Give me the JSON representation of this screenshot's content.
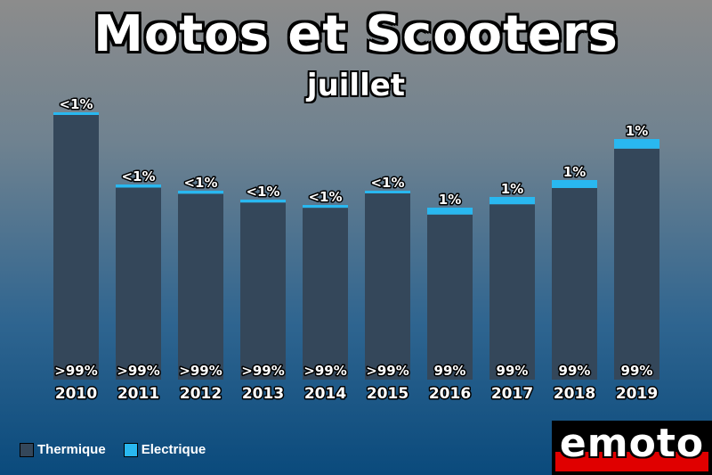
{
  "title": "Motos et Scooters",
  "subtitle": "juillet",
  "legend": {
    "items": [
      {
        "label": "Thermique",
        "color": "#34475a"
      },
      {
        "label": "Electrique",
        "color": "#29b8f0"
      }
    ]
  },
  "logo": {
    "text": "emoto"
  },
  "chart_data": {
    "type": "bar",
    "stacked": true,
    "categories": [
      "2010",
      "2011",
      "2012",
      "2013",
      "2014",
      "2015",
      "2016",
      "2017",
      "2018",
      "2019"
    ],
    "totals": [
      300,
      219,
      212,
      202,
      196,
      212,
      193,
      205,
      224,
      270
    ],
    "series": [
      {
        "name": "Thermique",
        "color": "#34475a",
        "share": [
          99.9,
          99.6,
          99.6,
          99.6,
          99.6,
          99.7,
          99.0,
          99.0,
          99.0,
          99.0
        ],
        "labels": [
          ">99%",
          ">99%",
          ">99%",
          ">99%",
          ">99%",
          ">99%",
          "99%",
          "99%",
          "99%",
          "99%"
        ]
      },
      {
        "name": "Electrique",
        "color": "#29b8f0",
        "share": [
          0.1,
          0.4,
          0.4,
          0.4,
          0.4,
          0.3,
          1.0,
          1.0,
          1.0,
          1.0
        ],
        "labels": [
          "<1%",
          "<1%",
          "<1%",
          "<1%",
          "<1%",
          "<1%",
          "1%",
          "1%",
          "1%",
          "1%"
        ]
      }
    ],
    "ylim": [
      0,
      300
    ],
    "grid": false,
    "legend_position": "bottom-left"
  }
}
